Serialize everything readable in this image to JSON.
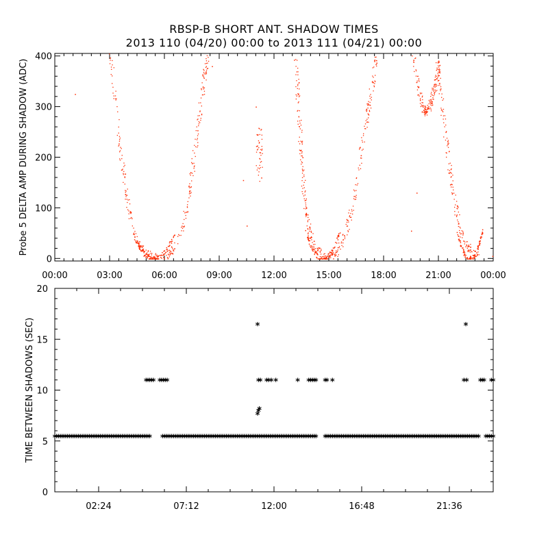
{
  "header": {
    "title": "RBSP-B SHORT ANT. SHADOW TIMES",
    "subtitle": "2013 110 (04/20) 00:00 to 2013 111 (04/21) 00:00"
  },
  "chart_data": [
    {
      "type": "scatter",
      "ylabel": "Probe 5 DELTA AMP DURING SHADOW (ADC)",
      "xlabel": "",
      "x_units": "hours",
      "xlim": [
        0,
        24
      ],
      "ylim": [
        -5,
        405
      ],
      "xticks": [
        "00:00",
        "03:00",
        "06:00",
        "09:00",
        "12:00",
        "15:00",
        "18:00",
        "21:00",
        "00:00"
      ],
      "yticks": [
        "0",
        "100",
        "200",
        "300",
        "400"
      ],
      "marker_color": "#ff2a00",
      "series": [
        {
          "descending_branches": [
            [
              [
                3.05,
                400
              ],
              [
                3.3,
                310
              ],
              [
                3.6,
                210
              ],
              [
                3.9,
                130
              ],
              [
                4.15,
                80
              ],
              [
                4.5,
                35
              ],
              [
                4.9,
                12
              ],
              [
                5.3,
                4
              ],
              [
                5.6,
                1
              ]
            ],
            [
              [
                13.2,
                400
              ],
              [
                13.3,
                320
              ],
              [
                13.4,
                250
              ],
              [
                13.5,
                190
              ],
              [
                13.6,
                140
              ],
              [
                13.75,
                90
              ],
              [
                13.95,
                50
              ],
              [
                14.3,
                20
              ],
              [
                14.7,
                4
              ]
            ],
            [
              [
                20.95,
                395
              ],
              [
                21.1,
                330
              ],
              [
                21.35,
                250
              ],
              [
                21.6,
                180
              ],
              [
                21.85,
                120
              ],
              [
                22.1,
                70
              ],
              [
                22.4,
                35
              ],
              [
                22.8,
                12
              ],
              [
                23.2,
                4
              ]
            ]
          ],
          "ascending_branches": [
            [
              [
                5.9,
                2
              ],
              [
                6.3,
                10
              ],
              [
                6.75,
                35
              ],
              [
                7.05,
                70
              ],
              [
                7.3,
                120
              ],
              [
                7.5,
                170
              ],
              [
                7.75,
                240
              ],
              [
                8.0,
                310
              ],
              [
                8.2,
                370
              ],
              [
                8.35,
                400
              ]
            ],
            [
              [
                15.0,
                2
              ],
              [
                15.4,
                12
              ],
              [
                15.8,
                40
              ],
              [
                16.2,
                90
              ],
              [
                16.5,
                150
              ],
              [
                16.8,
                220
              ],
              [
                17.1,
                290
              ],
              [
                17.4,
                350
              ],
              [
                17.6,
                400
              ]
            ],
            [
              [
                19.6,
                400
              ],
              [
                19.9,
                330
              ],
              [
                20.2,
                290
              ],
              [
                20.5,
                300
              ],
              [
                20.8,
                340
              ],
              [
                21.0,
                380
              ]
            ]
          ],
          "isolated_points": [
            [
              1.1,
              325
            ],
            [
              8.6,
              380
            ],
            [
              10.3,
              155
            ],
            [
              10.5,
              65
            ],
            [
              11.1,
              245
            ],
            [
              11.2,
              210
            ],
            [
              11.3,
              160
            ],
            [
              11.0,
              300
            ],
            [
              19.5,
              55
            ],
            [
              19.8,
              130
            ],
            [
              23.95,
              5
            ]
          ]
        }
      ]
    },
    {
      "type": "scatter",
      "ylabel": "TIME BETWEEN SHADOWS (SEC)",
      "xlabel": "",
      "x_units": "hours",
      "xlim": [
        0,
        24
      ],
      "ylim": [
        0,
        20
      ],
      "xticks": [
        "02:24",
        "07:12",
        "12:00",
        "16:48",
        "21:36"
      ],
      "xtick_values": [
        2.4,
        7.2,
        12.0,
        16.8,
        21.6
      ],
      "yticks": [
        "0",
        "5",
        "10",
        "15",
        "20"
      ],
      "marker": "asterisk",
      "marker_color": "#000000",
      "series": [
        {
          "baseline_value": 5.5,
          "baseline_ranges": [
            [
              0.0,
              5.2
            ],
            [
              5.9,
              14.3
            ],
            [
              14.8,
              23.2
            ],
            [
              23.6,
              24.0
            ]
          ],
          "points": [
            [
              5.0,
              11.0
            ],
            [
              5.1,
              11.0
            ],
            [
              5.2,
              11.0
            ],
            [
              5.3,
              11.0
            ],
            [
              5.4,
              11.0
            ],
            [
              5.75,
              11.0
            ],
            [
              5.85,
              11.0
            ],
            [
              5.95,
              11.0
            ],
            [
              6.05,
              11.0
            ],
            [
              6.15,
              11.0
            ],
            [
              11.1,
              16.5
            ],
            [
              11.15,
              11.0
            ],
            [
              11.2,
              8.2
            ],
            [
              11.15,
              8.0
            ],
            [
              11.1,
              7.7
            ],
            [
              11.25,
              11.0
            ],
            [
              11.6,
              11.0
            ],
            [
              11.7,
              11.0
            ],
            [
              11.85,
              11.0
            ],
            [
              12.1,
              11.0
            ],
            [
              13.3,
              11.0
            ],
            [
              13.9,
              11.0
            ],
            [
              14.0,
              11.0
            ],
            [
              14.1,
              11.0
            ],
            [
              14.2,
              11.0
            ],
            [
              14.3,
              11.0
            ],
            [
              14.8,
              11.0
            ],
            [
              14.9,
              11.0
            ],
            [
              15.2,
              11.0
            ],
            [
              22.5,
              16.5
            ],
            [
              22.4,
              11.0
            ],
            [
              22.55,
              11.0
            ],
            [
              23.3,
              11.0
            ],
            [
              23.4,
              11.0
            ],
            [
              23.5,
              11.0
            ],
            [
              23.9,
              11.0
            ],
            [
              24.0,
              11.0
            ]
          ]
        }
      ]
    }
  ]
}
